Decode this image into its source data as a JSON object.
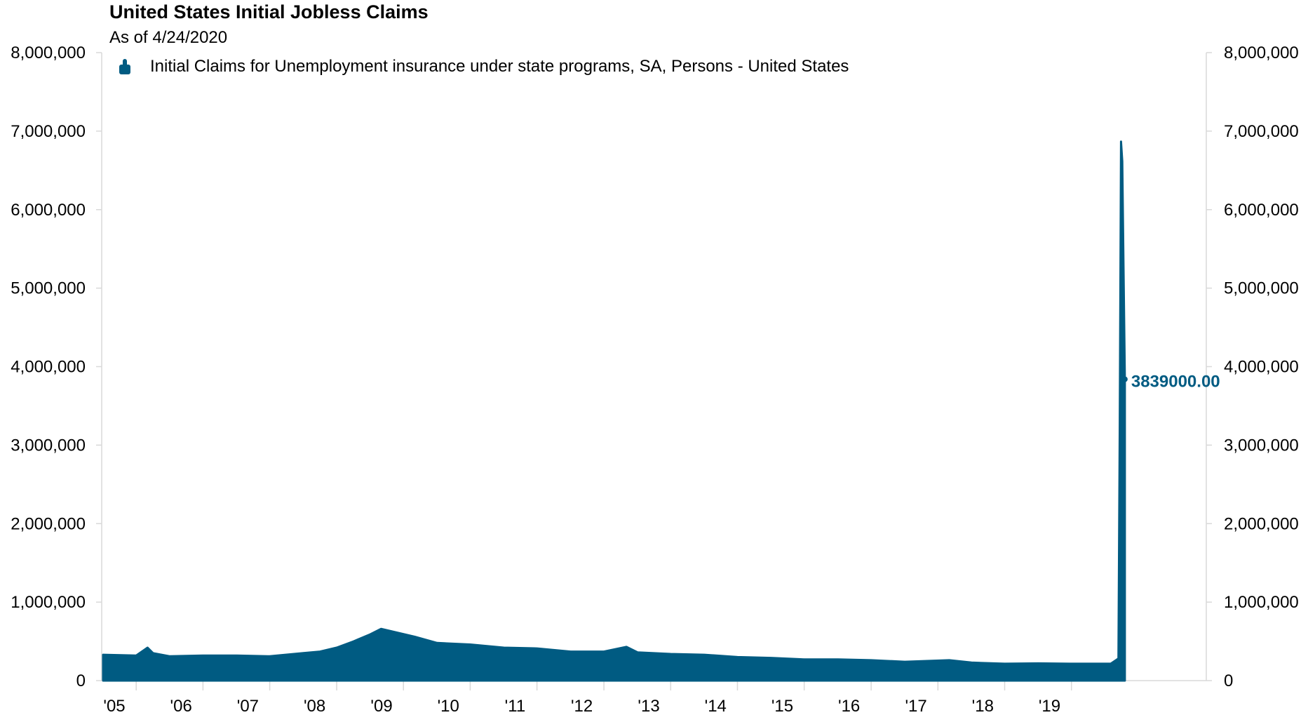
{
  "chart_data": {
    "type": "area",
    "title": "United States Initial Jobless Claims",
    "subtitle": "As of 4/24/2020",
    "series": [
      {
        "name": "Initial Claims for Unemployment insurance under state programs, SA, Persons - United States",
        "color": "#005b82",
        "points": [
          [
            "2005-01",
            330000
          ],
          [
            "2005-07",
            320000
          ],
          [
            "2005-09",
            420000
          ],
          [
            "2005-10",
            350000
          ],
          [
            "2006-01",
            310000
          ],
          [
            "2006-07",
            320000
          ],
          [
            "2007-01",
            320000
          ],
          [
            "2007-07",
            310000
          ],
          [
            "2008-01",
            350000
          ],
          [
            "2008-04",
            370000
          ],
          [
            "2008-07",
            420000
          ],
          [
            "2008-10",
            500000
          ],
          [
            "2009-01",
            590000
          ],
          [
            "2009-03",
            660000
          ],
          [
            "2009-06",
            610000
          ],
          [
            "2009-09",
            560000
          ],
          [
            "2010-01",
            480000
          ],
          [
            "2010-07",
            460000
          ],
          [
            "2011-01",
            420000
          ],
          [
            "2011-07",
            410000
          ],
          [
            "2012-01",
            370000
          ],
          [
            "2012-07",
            370000
          ],
          [
            "2012-11",
            430000
          ],
          [
            "2013-01",
            360000
          ],
          [
            "2013-07",
            340000
          ],
          [
            "2014-01",
            330000
          ],
          [
            "2014-07",
            300000
          ],
          [
            "2015-01",
            290000
          ],
          [
            "2015-07",
            270000
          ],
          [
            "2016-01",
            270000
          ],
          [
            "2016-07",
            260000
          ],
          [
            "2017-01",
            240000
          ],
          [
            "2017-09",
            260000
          ],
          [
            "2018-01",
            230000
          ],
          [
            "2018-07",
            215000
          ],
          [
            "2019-01",
            220000
          ],
          [
            "2019-07",
            215000
          ],
          [
            "2020-02",
            215000
          ],
          [
            "2020-03-14",
            282000
          ],
          [
            "2020-03-21",
            3307000
          ],
          [
            "2020-03-28",
            6867000
          ],
          [
            "2020-04-04",
            6615000
          ],
          [
            "2020-04-11",
            5237000
          ],
          [
            "2020-04-18",
            3839000
          ]
        ]
      }
    ],
    "end_label": "3839000.00",
    "ylim": [
      0,
      8000000
    ],
    "y_ticks": [
      0,
      1000000,
      2000000,
      3000000,
      4000000,
      5000000,
      6000000,
      7000000,
      8000000
    ],
    "y_tick_labels": [
      "0",
      "1,000,000",
      "2,000,000",
      "3,000,000",
      "4,000,000",
      "5,000,000",
      "6,000,000",
      "7,000,000",
      "8,000,000"
    ],
    "x_range": [
      "2005-01-01",
      "2021-07-15"
    ],
    "x_tick_labels": [
      "'05",
      "'06",
      "'07",
      "'08",
      "'09",
      "'10",
      "'11",
      "'12",
      "'13",
      "'14",
      "'15",
      "'16",
      "'17",
      "'18",
      "'19"
    ],
    "dual_y_axis": true,
    "grid": false,
    "legend_position": "top-left"
  }
}
